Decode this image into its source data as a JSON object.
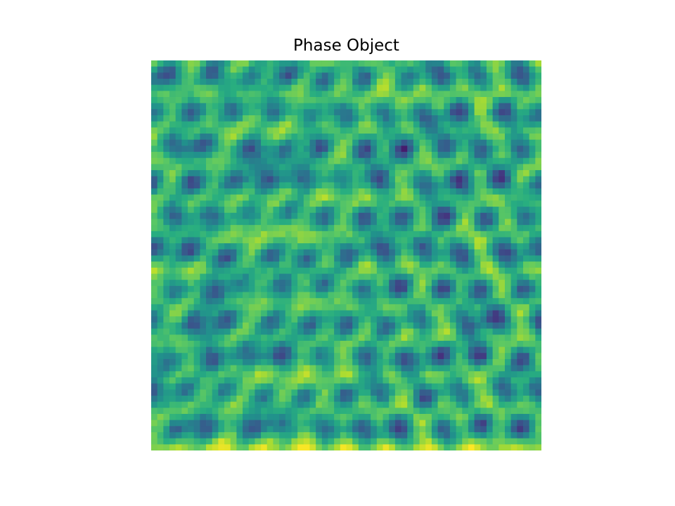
{
  "chart_data": {
    "type": "heatmap",
    "title": "Phase Object",
    "xlabel": "",
    "ylabel": "",
    "axes_visible": false,
    "grid": false,
    "colormap": "viridis",
    "colormap_stops": [
      "#440154",
      "#472d7b",
      "#3b528b",
      "#2c728e",
      "#21918c",
      "#28ae80",
      "#5ec962",
      "#addc30",
      "#fde725"
    ],
    "pattern": "hexagonal-lattice",
    "lattice_rows": 10,
    "lattice_columns": 10,
    "resolution": [
      64,
      64
    ]
  }
}
